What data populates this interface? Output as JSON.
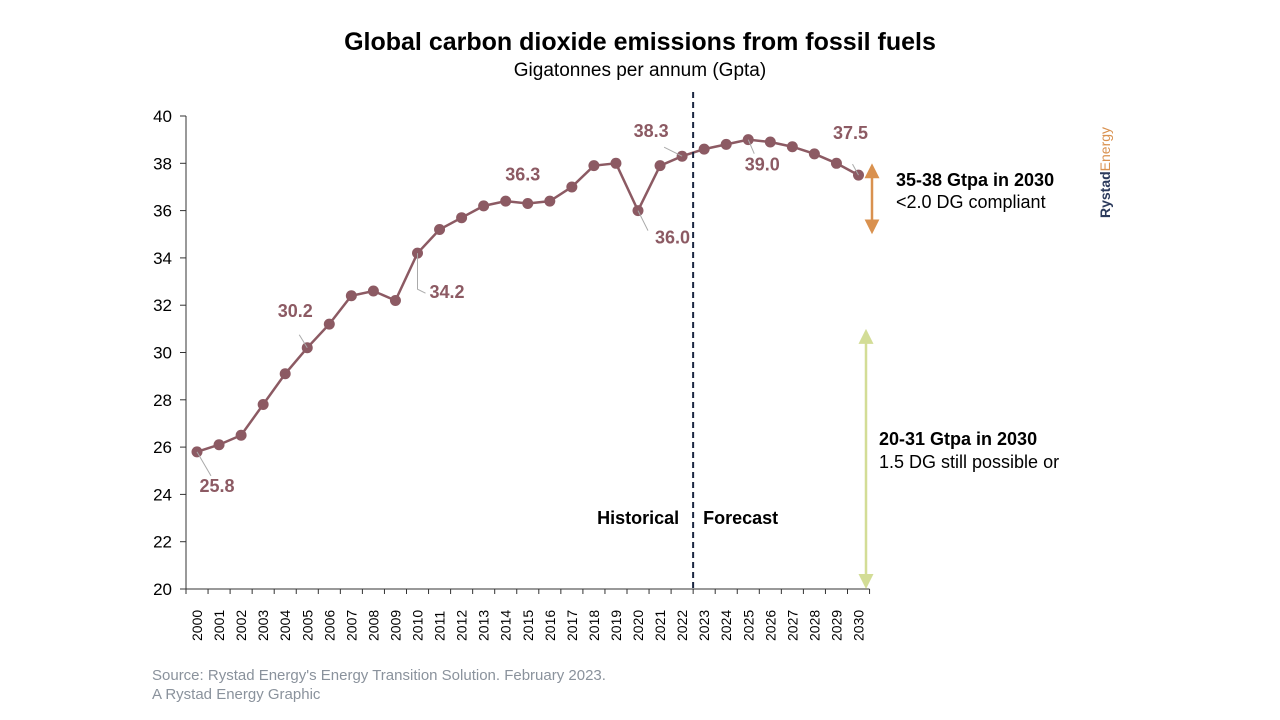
{
  "title": "Global carbon dioxide emissions from fossil fuels",
  "subtitle": "Gigatonnes per annum (Gpta)",
  "source_line1": "Source: Rystad Energy's Energy Transition Solution. February 2023.",
  "source_line2": "A Rystad Energy Graphic",
  "brand": {
    "part1": "Rystad",
    "part2": "Energy"
  },
  "colors": {
    "series": "#8c5a63",
    "orange": "#d9914f",
    "green": "#d3dd96",
    "divider": "#1a2540",
    "axis": "#333333"
  },
  "chart_data": {
    "type": "line",
    "x": [
      "2000",
      "2001",
      "2002",
      "2003",
      "2004",
      "2005",
      "2006",
      "2007",
      "2008",
      "2009",
      "2010",
      "2011",
      "2012",
      "2013",
      "2014",
      "2015",
      "2016",
      "2017",
      "2018",
      "2019",
      "2020",
      "2021",
      "2022",
      "2023",
      "2024",
      "2025",
      "2026",
      "2027",
      "2028",
      "2029",
      "2030"
    ],
    "series": [
      {
        "values": [
          25.8,
          26.1,
          26.5,
          27.8,
          29.1,
          30.2,
          31.2,
          32.4,
          32.6,
          32.2,
          34.2,
          35.2,
          35.7,
          36.2,
          36.4,
          36.3,
          36.4,
          37.0,
          37.9,
          38.0,
          36.0,
          37.9,
          38.3,
          38.6,
          38.8,
          39.0,
          38.9,
          38.7,
          38.4,
          38.0,
          37.5
        ]
      }
    ],
    "ylim": [
      20,
      40
    ],
    "yticks": [
      "20",
      "22",
      "24",
      "26",
      "28",
      "30",
      "32",
      "34",
      "36",
      "38",
      "40"
    ],
    "grid": false,
    "data_labels": [
      {
        "year": "2000",
        "text": "25.8"
      },
      {
        "year": "2005",
        "text": "30.2"
      },
      {
        "year": "2010",
        "text": "34.2"
      },
      {
        "year": "2015",
        "text": "36.3"
      },
      {
        "year": "2020",
        "text": "36.0"
      },
      {
        "year": "2022",
        "text": "38.3"
      },
      {
        "year": "2025",
        "text": "39.0"
      },
      {
        "year": "2030",
        "text": "37.5"
      }
    ],
    "divider_after_year": "2022",
    "labels": {
      "historical": "Historical",
      "forecast": "Forecast"
    },
    "ranges": [
      {
        "from": 35,
        "to": 38,
        "title": "35-38 Gtpa in 2030",
        "desc": "<2.0 DG compliant",
        "color": "orange"
      },
      {
        "from": 20,
        "to": 31,
        "title": "20-31 Gtpa in 2030",
        "desc": "1.5 DG still possible or",
        "color": "green"
      }
    ]
  }
}
